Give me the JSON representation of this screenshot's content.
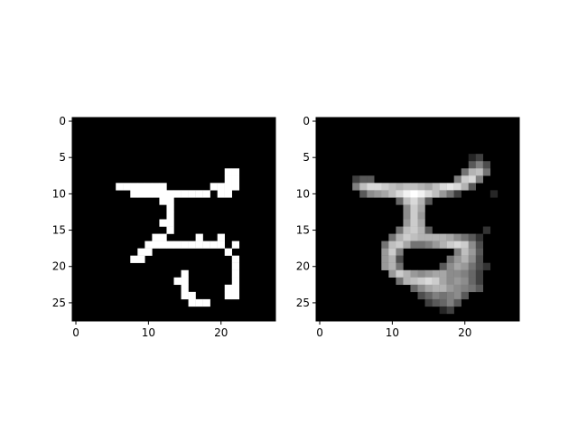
{
  "figure": {
    "background_color": "#ffffff",
    "cmap": "gray"
  },
  "chart_data": [
    {
      "type": "heatmap",
      "title": "",
      "xlabel": "",
      "ylabel": "",
      "grid": false,
      "shape": [
        28,
        28
      ],
      "xlim": [
        -0.5,
        27.5
      ],
      "ylim": [
        27.5,
        -0.5
      ],
      "xticks": [
        0,
        10,
        20
      ],
      "yticks": [
        0,
        5,
        10,
        15,
        20,
        25
      ],
      "x_tick_labels": [
        "0",
        "10",
        "20"
      ],
      "y_tick_labels": [
        "0",
        "5",
        "10",
        "15",
        "20",
        "25"
      ],
      "value_range": [
        0,
        1
      ],
      "pixels": [
        [
          6,
          9,
          1
        ],
        [
          7,
          9,
          1
        ],
        [
          8,
          9,
          1
        ],
        [
          9,
          9,
          1
        ],
        [
          10,
          9,
          1
        ],
        [
          11,
          9,
          1
        ],
        [
          12,
          9,
          1
        ],
        [
          21,
          7,
          1
        ],
        [
          22,
          7,
          1
        ],
        [
          21,
          8,
          1
        ],
        [
          22,
          8,
          1
        ],
        [
          20,
          9,
          1
        ],
        [
          21,
          9,
          1
        ],
        [
          22,
          9,
          1
        ],
        [
          19,
          9,
          1
        ],
        [
          8,
          10,
          1
        ],
        [
          9,
          10,
          1
        ],
        [
          10,
          10,
          1
        ],
        [
          11,
          10,
          1
        ],
        [
          12,
          10,
          1
        ],
        [
          13,
          10,
          1
        ],
        [
          14,
          10,
          1
        ],
        [
          15,
          10,
          1
        ],
        [
          16,
          10,
          1
        ],
        [
          17,
          10,
          1
        ],
        [
          18,
          10,
          1
        ],
        [
          20,
          10,
          1
        ],
        [
          21,
          10,
          1
        ],
        [
          12,
          11,
          1
        ],
        [
          13,
          11,
          1
        ],
        [
          13,
          12,
          1
        ],
        [
          13,
          13,
          1
        ],
        [
          13,
          14,
          1
        ],
        [
          12,
          14,
          1
        ],
        [
          13,
          15,
          1
        ],
        [
          12,
          16,
          1
        ],
        [
          11,
          16,
          1
        ],
        [
          17,
          16,
          1
        ],
        [
          20,
          16,
          1
        ],
        [
          10,
          17,
          1
        ],
        [
          11,
          17,
          1
        ],
        [
          12,
          17,
          1
        ],
        [
          13,
          17,
          1
        ],
        [
          14,
          17,
          1
        ],
        [
          15,
          17,
          1
        ],
        [
          16,
          17,
          1
        ],
        [
          17,
          17,
          1
        ],
        [
          18,
          17,
          1
        ],
        [
          19,
          17,
          1
        ],
        [
          20,
          17,
          1
        ],
        [
          22,
          17,
          1
        ],
        [
          9,
          18,
          1
        ],
        [
          10,
          18,
          1
        ],
        [
          21,
          18,
          1
        ],
        [
          8,
          19,
          1
        ],
        [
          9,
          19,
          1
        ],
        [
          22,
          19,
          1
        ],
        [
          22,
          20,
          1
        ],
        [
          15,
          21,
          1
        ],
        [
          22,
          21,
          1
        ],
        [
          14,
          22,
          1
        ],
        [
          15,
          22,
          1
        ],
        [
          22,
          22,
          1
        ],
        [
          15,
          23,
          1
        ],
        [
          21,
          23,
          1
        ],
        [
          22,
          23,
          1
        ],
        [
          15,
          24,
          1
        ],
        [
          16,
          24,
          1
        ],
        [
          21,
          24,
          1
        ],
        [
          22,
          24,
          1
        ],
        [
          16,
          25,
          1
        ],
        [
          17,
          25,
          1
        ],
        [
          18,
          25,
          1
        ]
      ]
    },
    {
      "type": "heatmap",
      "title": "",
      "xlabel": "",
      "ylabel": "",
      "grid": false,
      "shape": [
        28,
        28
      ],
      "xlim": [
        -0.5,
        27.5
      ],
      "ylim": [
        27.5,
        -0.5
      ],
      "xticks": [
        0,
        10,
        20
      ],
      "yticks": [
        0,
        5,
        10,
        15,
        20,
        25
      ],
      "x_tick_labels": [
        "0",
        "10",
        "20"
      ],
      "y_tick_labels": [
        "0",
        "5",
        "10",
        "15",
        "20",
        "25"
      ],
      "value_range": [
        0,
        1
      ],
      "pixels": [
        [
          21,
          5,
          0.15
        ],
        [
          22,
          5,
          0.25
        ],
        [
          21,
          6,
          0.35
        ],
        [
          22,
          6,
          0.5
        ],
        [
          23,
          6,
          0.3
        ],
        [
          20,
          7,
          0.45
        ],
        [
          21,
          7,
          0.7
        ],
        [
          22,
          7,
          0.75
        ],
        [
          23,
          7,
          0.45
        ],
        [
          5,
          8,
          0.25
        ],
        [
          6,
          8,
          0.35
        ],
        [
          7,
          8,
          0.35
        ],
        [
          19,
          8,
          0.5
        ],
        [
          20,
          8,
          0.8
        ],
        [
          21,
          8,
          0.85
        ],
        [
          22,
          8,
          0.5
        ],
        [
          5,
          9,
          0.5
        ],
        [
          6,
          9,
          0.75
        ],
        [
          7,
          9,
          0.85
        ],
        [
          8,
          9,
          0.85
        ],
        [
          9,
          9,
          0.8
        ],
        [
          10,
          9,
          0.75
        ],
        [
          11,
          9,
          0.7
        ],
        [
          12,
          9,
          0.75
        ],
        [
          13,
          9,
          0.75
        ],
        [
          14,
          9,
          0.7
        ],
        [
          15,
          9,
          0.65
        ],
        [
          16,
          9,
          0.75
        ],
        [
          17,
          9,
          0.85
        ],
        [
          18,
          9,
          0.9
        ],
        [
          19,
          9,
          0.85
        ],
        [
          20,
          9,
          0.7
        ],
        [
          21,
          9,
          0.35
        ],
        [
          6,
          10,
          0.35
        ],
        [
          7,
          10,
          0.55
        ],
        [
          8,
          10,
          0.6
        ],
        [
          9,
          10,
          0.65
        ],
        [
          10,
          10,
          0.75
        ],
        [
          11,
          10,
          0.85
        ],
        [
          12,
          10,
          0.95
        ],
        [
          13,
          10,
          1
        ],
        [
          14,
          10,
          0.95
        ],
        [
          15,
          10,
          0.85
        ],
        [
          16,
          10,
          0.75
        ],
        [
          17,
          10,
          0.6
        ],
        [
          18,
          10,
          0.45
        ],
        [
          19,
          10,
          0.25
        ],
        [
          24,
          10,
          0.15
        ],
        [
          11,
          11,
          0.4
        ],
        [
          12,
          11,
          0.75
        ],
        [
          13,
          11,
          0.85
        ],
        [
          14,
          11,
          0.7
        ],
        [
          15,
          11,
          0.35
        ],
        [
          12,
          12,
          0.55
        ],
        [
          13,
          12,
          0.8
        ],
        [
          14,
          12,
          0.65
        ],
        [
          12,
          13,
          0.55
        ],
        [
          13,
          13,
          0.8
        ],
        [
          14,
          13,
          0.6
        ],
        [
          12,
          14,
          0.6
        ],
        [
          13,
          14,
          0.8
        ],
        [
          14,
          14,
          0.65
        ],
        [
          11,
          15,
          0.45
        ],
        [
          12,
          15,
          0.75
        ],
        [
          13,
          15,
          0.8
        ],
        [
          14,
          15,
          0.7
        ],
        [
          15,
          15,
          0.35
        ],
        [
          23,
          15,
          0.2
        ],
        [
          10,
          16,
          0.45
        ],
        [
          11,
          16,
          0.7
        ],
        [
          12,
          16,
          0.8
        ],
        [
          13,
          16,
          0.75
        ],
        [
          14,
          16,
          0.7
        ],
        [
          15,
          16,
          0.7
        ],
        [
          16,
          16,
          0.7
        ],
        [
          17,
          16,
          0.7
        ],
        [
          18,
          16,
          0.65
        ],
        [
          19,
          16,
          0.55
        ],
        [
          20,
          16,
          0.45
        ],
        [
          21,
          16,
          0.35
        ],
        [
          22,
          16,
          0.2
        ],
        [
          9,
          17,
          0.45
        ],
        [
          10,
          17,
          0.75
        ],
        [
          11,
          17,
          0.8
        ],
        [
          12,
          17,
          0.65
        ],
        [
          13,
          17,
          0.45
        ],
        [
          14,
          17,
          0.45
        ],
        [
          15,
          17,
          0.5
        ],
        [
          16,
          17,
          0.6
        ],
        [
          17,
          17,
          0.7
        ],
        [
          18,
          17,
          0.8
        ],
        [
          19,
          17,
          0.85
        ],
        [
          20,
          17,
          0.8
        ],
        [
          21,
          17,
          0.55
        ],
        [
          22,
          17,
          0.3
        ],
        [
          9,
          18,
          0.6
        ],
        [
          10,
          18,
          0.8
        ],
        [
          11,
          18,
          0.5
        ],
        [
          19,
          18,
          0.5
        ],
        [
          20,
          18,
          0.75
        ],
        [
          21,
          18,
          0.6
        ],
        [
          22,
          18,
          0.35
        ],
        [
          9,
          19,
          0.6
        ],
        [
          10,
          19,
          0.7
        ],
        [
          11,
          19,
          0.3
        ],
        [
          18,
          19,
          0.45
        ],
        [
          19,
          19,
          0.6
        ],
        [
          20,
          19,
          0.7
        ],
        [
          21,
          19,
          0.55
        ],
        [
          22,
          19,
          0.3
        ],
        [
          9,
          20,
          0.6
        ],
        [
          10,
          20,
          0.7
        ],
        [
          11,
          20,
          0.45
        ],
        [
          17,
          20,
          0.35
        ],
        [
          18,
          20,
          0.55
        ],
        [
          19,
          20,
          0.65
        ],
        [
          20,
          20,
          0.6
        ],
        [
          21,
          20,
          0.45
        ],
        [
          22,
          20,
          0.3
        ],
        [
          23,
          20,
          0.2
        ],
        [
          10,
          21,
          0.6
        ],
        [
          11,
          21,
          0.8
        ],
        [
          12,
          21,
          0.7
        ],
        [
          13,
          21,
          0.6
        ],
        [
          14,
          21,
          0.55
        ],
        [
          15,
          21,
          0.6
        ],
        [
          16,
          21,
          0.65
        ],
        [
          17,
          21,
          0.65
        ],
        [
          18,
          21,
          0.55
        ],
        [
          19,
          21,
          0.55
        ],
        [
          20,
          21,
          0.5
        ],
        [
          21,
          21,
          0.4
        ],
        [
          22,
          21,
          0.25
        ],
        [
          11,
          22,
          0.45
        ],
        [
          12,
          22,
          0.7
        ],
        [
          13,
          22,
          0.75
        ],
        [
          14,
          22,
          0.8
        ],
        [
          15,
          22,
          0.85
        ],
        [
          16,
          22,
          0.8
        ],
        [
          17,
          22,
          0.65
        ],
        [
          18,
          22,
          0.55
        ],
        [
          19,
          22,
          0.6
        ],
        [
          20,
          22,
          0.55
        ],
        [
          21,
          22,
          0.4
        ],
        [
          22,
          22,
          0.25
        ],
        [
          13,
          23,
          0.4
        ],
        [
          14,
          23,
          0.55
        ],
        [
          15,
          23,
          0.65
        ],
        [
          16,
          23,
          0.7
        ],
        [
          17,
          23,
          0.7
        ],
        [
          18,
          23,
          0.6
        ],
        [
          19,
          23,
          0.55
        ],
        [
          20,
          23,
          0.5
        ],
        [
          21,
          23,
          0.45
        ],
        [
          22,
          23,
          0.35
        ],
        [
          14,
          24,
          0.3
        ],
        [
          15,
          24,
          0.4
        ],
        [
          16,
          24,
          0.5
        ],
        [
          17,
          24,
          0.45
        ],
        [
          18,
          24,
          0.5
        ],
        [
          19,
          24,
          0.55
        ],
        [
          20,
          24,
          0.35
        ],
        [
          15,
          25,
          0.25
        ],
        [
          16,
          25,
          0.35
        ],
        [
          17,
          25,
          0.4
        ],
        [
          18,
          25,
          0.5
        ],
        [
          19,
          25,
          0.35
        ],
        [
          17,
          26,
          0.15
        ],
        [
          18,
          26,
          0.25
        ]
      ]
    }
  ]
}
